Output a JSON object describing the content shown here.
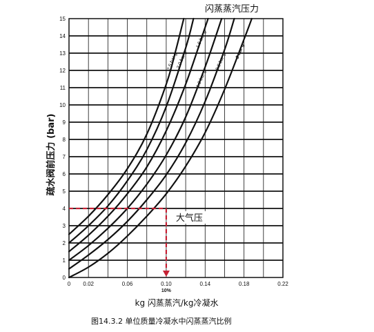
{
  "chart_data": {
    "type": "line",
    "title": "闪蒸蒸汽压力",
    "xlabel": "kg 闪蒸蒸汽/kg冷凝水",
    "ylabel": "疏水阀前压力 (bar)",
    "caption": "图14.3.2  单位质量冷凝水中闪蒸蒸汽比例",
    "xlim": [
      0,
      0.22
    ],
    "ylim": [
      0,
      15
    ],
    "x_ticks": [
      "0",
      "0.02",
      "0.06",
      "0.10",
      "0.14",
      "0.18",
      "0.22"
    ],
    "y_ticks": [
      "0",
      "1",
      "2",
      "3",
      "4",
      "5",
      "6",
      "7",
      "8",
      "9",
      "10",
      "11",
      "12",
      "13",
      "14",
      "15"
    ],
    "grid": true,
    "annotation": {
      "text": "大气压",
      "marker_label": "10%",
      "x": 0.1,
      "y": 4
    },
    "series": [
      {
        "name": "2.5 bar g",
        "points": [
          [
            0,
            2.5
          ],
          [
            0.02,
            3.55
          ],
          [
            0.04,
            4.8
          ],
          [
            0.06,
            6.3
          ],
          [
            0.08,
            8.3
          ],
          [
            0.1,
            11.2
          ],
          [
            0.11,
            13.2
          ],
          [
            0.118,
            15
          ]
        ]
      },
      {
        "name": "2.0 bar g",
        "points": [
          [
            0,
            2.0
          ],
          [
            0.02,
            3.0
          ],
          [
            0.04,
            4.15
          ],
          [
            0.06,
            5.6
          ],
          [
            0.08,
            7.4
          ],
          [
            0.1,
            9.9
          ],
          [
            0.12,
            13.3
          ],
          [
            0.128,
            15
          ]
        ]
      },
      {
        "name": "1.5 bar g",
        "points": [
          [
            0,
            1.5
          ],
          [
            0.02,
            2.45
          ],
          [
            0.04,
            3.55
          ],
          [
            0.06,
            4.85
          ],
          [
            0.08,
            6.4
          ],
          [
            0.1,
            8.5
          ],
          [
            0.12,
            11.2
          ],
          [
            0.14,
            14.5
          ],
          [
            0.143,
            15
          ]
        ]
      },
      {
        "name": "1.0 bar g",
        "points": [
          [
            0,
            1.0
          ],
          [
            0.02,
            1.85
          ],
          [
            0.04,
            2.85
          ],
          [
            0.06,
            4.0
          ],
          [
            0.08,
            5.4
          ],
          [
            0.1,
            7.1
          ],
          [
            0.12,
            9.3
          ],
          [
            0.14,
            12.2
          ],
          [
            0.157,
            15
          ]
        ]
      },
      {
        "name": "0.5 bar g",
        "points": [
          [
            0,
            0.5
          ],
          [
            0.02,
            1.3
          ],
          [
            0.04,
            2.2
          ],
          [
            0.06,
            3.25
          ],
          [
            0.08,
            4.5
          ],
          [
            0.1,
            5.95
          ],
          [
            0.12,
            7.8
          ],
          [
            0.14,
            10.2
          ],
          [
            0.16,
            13.2
          ],
          [
            0.17,
            15
          ]
        ]
      },
      {
        "name": "0 bar g",
        "points": [
          [
            0,
            0
          ],
          [
            0.02,
            0.6
          ],
          [
            0.04,
            1.4
          ],
          [
            0.06,
            2.4
          ],
          [
            0.08,
            3.55
          ],
          [
            0.1,
            4.85
          ],
          [
            0.12,
            6.45
          ],
          [
            0.14,
            8.4
          ],
          [
            0.16,
            10.9
          ],
          [
            0.18,
            13.8
          ],
          [
            0.188,
            15
          ]
        ]
      }
    ]
  }
}
